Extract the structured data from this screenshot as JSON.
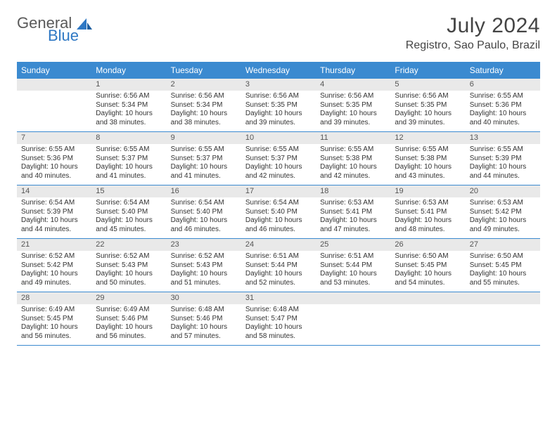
{
  "brand": {
    "part1": "General",
    "part2": "Blue"
  },
  "title": "July 2024",
  "location": "Registro, Sao Paulo, Brazil",
  "colors": {
    "header_bg": "#3b8ad0",
    "header_text": "#ffffff",
    "daynum_bg": "#e9e9e9",
    "rule": "#3b8ad0",
    "body_text": "#333333"
  },
  "day_names": [
    "Sunday",
    "Monday",
    "Tuesday",
    "Wednesday",
    "Thursday",
    "Friday",
    "Saturday"
  ],
  "weeks": [
    [
      {
        "n": "",
        "sunrise": "",
        "sunset": "",
        "daylight": ""
      },
      {
        "n": "1",
        "sunrise": "Sunrise: 6:56 AM",
        "sunset": "Sunset: 5:34 PM",
        "daylight": "Daylight: 10 hours and 38 minutes."
      },
      {
        "n": "2",
        "sunrise": "Sunrise: 6:56 AM",
        "sunset": "Sunset: 5:34 PM",
        "daylight": "Daylight: 10 hours and 38 minutes."
      },
      {
        "n": "3",
        "sunrise": "Sunrise: 6:56 AM",
        "sunset": "Sunset: 5:35 PM",
        "daylight": "Daylight: 10 hours and 39 minutes."
      },
      {
        "n": "4",
        "sunrise": "Sunrise: 6:56 AM",
        "sunset": "Sunset: 5:35 PM",
        "daylight": "Daylight: 10 hours and 39 minutes."
      },
      {
        "n": "5",
        "sunrise": "Sunrise: 6:56 AM",
        "sunset": "Sunset: 5:35 PM",
        "daylight": "Daylight: 10 hours and 39 minutes."
      },
      {
        "n": "6",
        "sunrise": "Sunrise: 6:55 AM",
        "sunset": "Sunset: 5:36 PM",
        "daylight": "Daylight: 10 hours and 40 minutes."
      }
    ],
    [
      {
        "n": "7",
        "sunrise": "Sunrise: 6:55 AM",
        "sunset": "Sunset: 5:36 PM",
        "daylight": "Daylight: 10 hours and 40 minutes."
      },
      {
        "n": "8",
        "sunrise": "Sunrise: 6:55 AM",
        "sunset": "Sunset: 5:37 PM",
        "daylight": "Daylight: 10 hours and 41 minutes."
      },
      {
        "n": "9",
        "sunrise": "Sunrise: 6:55 AM",
        "sunset": "Sunset: 5:37 PM",
        "daylight": "Daylight: 10 hours and 41 minutes."
      },
      {
        "n": "10",
        "sunrise": "Sunrise: 6:55 AM",
        "sunset": "Sunset: 5:37 PM",
        "daylight": "Daylight: 10 hours and 42 minutes."
      },
      {
        "n": "11",
        "sunrise": "Sunrise: 6:55 AM",
        "sunset": "Sunset: 5:38 PM",
        "daylight": "Daylight: 10 hours and 42 minutes."
      },
      {
        "n": "12",
        "sunrise": "Sunrise: 6:55 AM",
        "sunset": "Sunset: 5:38 PM",
        "daylight": "Daylight: 10 hours and 43 minutes."
      },
      {
        "n": "13",
        "sunrise": "Sunrise: 6:55 AM",
        "sunset": "Sunset: 5:39 PM",
        "daylight": "Daylight: 10 hours and 44 minutes."
      }
    ],
    [
      {
        "n": "14",
        "sunrise": "Sunrise: 6:54 AM",
        "sunset": "Sunset: 5:39 PM",
        "daylight": "Daylight: 10 hours and 44 minutes."
      },
      {
        "n": "15",
        "sunrise": "Sunrise: 6:54 AM",
        "sunset": "Sunset: 5:40 PM",
        "daylight": "Daylight: 10 hours and 45 minutes."
      },
      {
        "n": "16",
        "sunrise": "Sunrise: 6:54 AM",
        "sunset": "Sunset: 5:40 PM",
        "daylight": "Daylight: 10 hours and 46 minutes."
      },
      {
        "n": "17",
        "sunrise": "Sunrise: 6:54 AM",
        "sunset": "Sunset: 5:40 PM",
        "daylight": "Daylight: 10 hours and 46 minutes."
      },
      {
        "n": "18",
        "sunrise": "Sunrise: 6:53 AM",
        "sunset": "Sunset: 5:41 PM",
        "daylight": "Daylight: 10 hours and 47 minutes."
      },
      {
        "n": "19",
        "sunrise": "Sunrise: 6:53 AM",
        "sunset": "Sunset: 5:41 PM",
        "daylight": "Daylight: 10 hours and 48 minutes."
      },
      {
        "n": "20",
        "sunrise": "Sunrise: 6:53 AM",
        "sunset": "Sunset: 5:42 PM",
        "daylight": "Daylight: 10 hours and 49 minutes."
      }
    ],
    [
      {
        "n": "21",
        "sunrise": "Sunrise: 6:52 AM",
        "sunset": "Sunset: 5:42 PM",
        "daylight": "Daylight: 10 hours and 49 minutes."
      },
      {
        "n": "22",
        "sunrise": "Sunrise: 6:52 AM",
        "sunset": "Sunset: 5:43 PM",
        "daylight": "Daylight: 10 hours and 50 minutes."
      },
      {
        "n": "23",
        "sunrise": "Sunrise: 6:52 AM",
        "sunset": "Sunset: 5:43 PM",
        "daylight": "Daylight: 10 hours and 51 minutes."
      },
      {
        "n": "24",
        "sunrise": "Sunrise: 6:51 AM",
        "sunset": "Sunset: 5:44 PM",
        "daylight": "Daylight: 10 hours and 52 minutes."
      },
      {
        "n": "25",
        "sunrise": "Sunrise: 6:51 AM",
        "sunset": "Sunset: 5:44 PM",
        "daylight": "Daylight: 10 hours and 53 minutes."
      },
      {
        "n": "26",
        "sunrise": "Sunrise: 6:50 AM",
        "sunset": "Sunset: 5:45 PM",
        "daylight": "Daylight: 10 hours and 54 minutes."
      },
      {
        "n": "27",
        "sunrise": "Sunrise: 6:50 AM",
        "sunset": "Sunset: 5:45 PM",
        "daylight": "Daylight: 10 hours and 55 minutes."
      }
    ],
    [
      {
        "n": "28",
        "sunrise": "Sunrise: 6:49 AM",
        "sunset": "Sunset: 5:45 PM",
        "daylight": "Daylight: 10 hours and 56 minutes."
      },
      {
        "n": "29",
        "sunrise": "Sunrise: 6:49 AM",
        "sunset": "Sunset: 5:46 PM",
        "daylight": "Daylight: 10 hours and 56 minutes."
      },
      {
        "n": "30",
        "sunrise": "Sunrise: 6:48 AM",
        "sunset": "Sunset: 5:46 PM",
        "daylight": "Daylight: 10 hours and 57 minutes."
      },
      {
        "n": "31",
        "sunrise": "Sunrise: 6:48 AM",
        "sunset": "Sunset: 5:47 PM",
        "daylight": "Daylight: 10 hours and 58 minutes."
      },
      {
        "n": "",
        "sunrise": "",
        "sunset": "",
        "daylight": ""
      },
      {
        "n": "",
        "sunrise": "",
        "sunset": "",
        "daylight": ""
      },
      {
        "n": "",
        "sunrise": "",
        "sunset": "",
        "daylight": ""
      }
    ]
  ]
}
